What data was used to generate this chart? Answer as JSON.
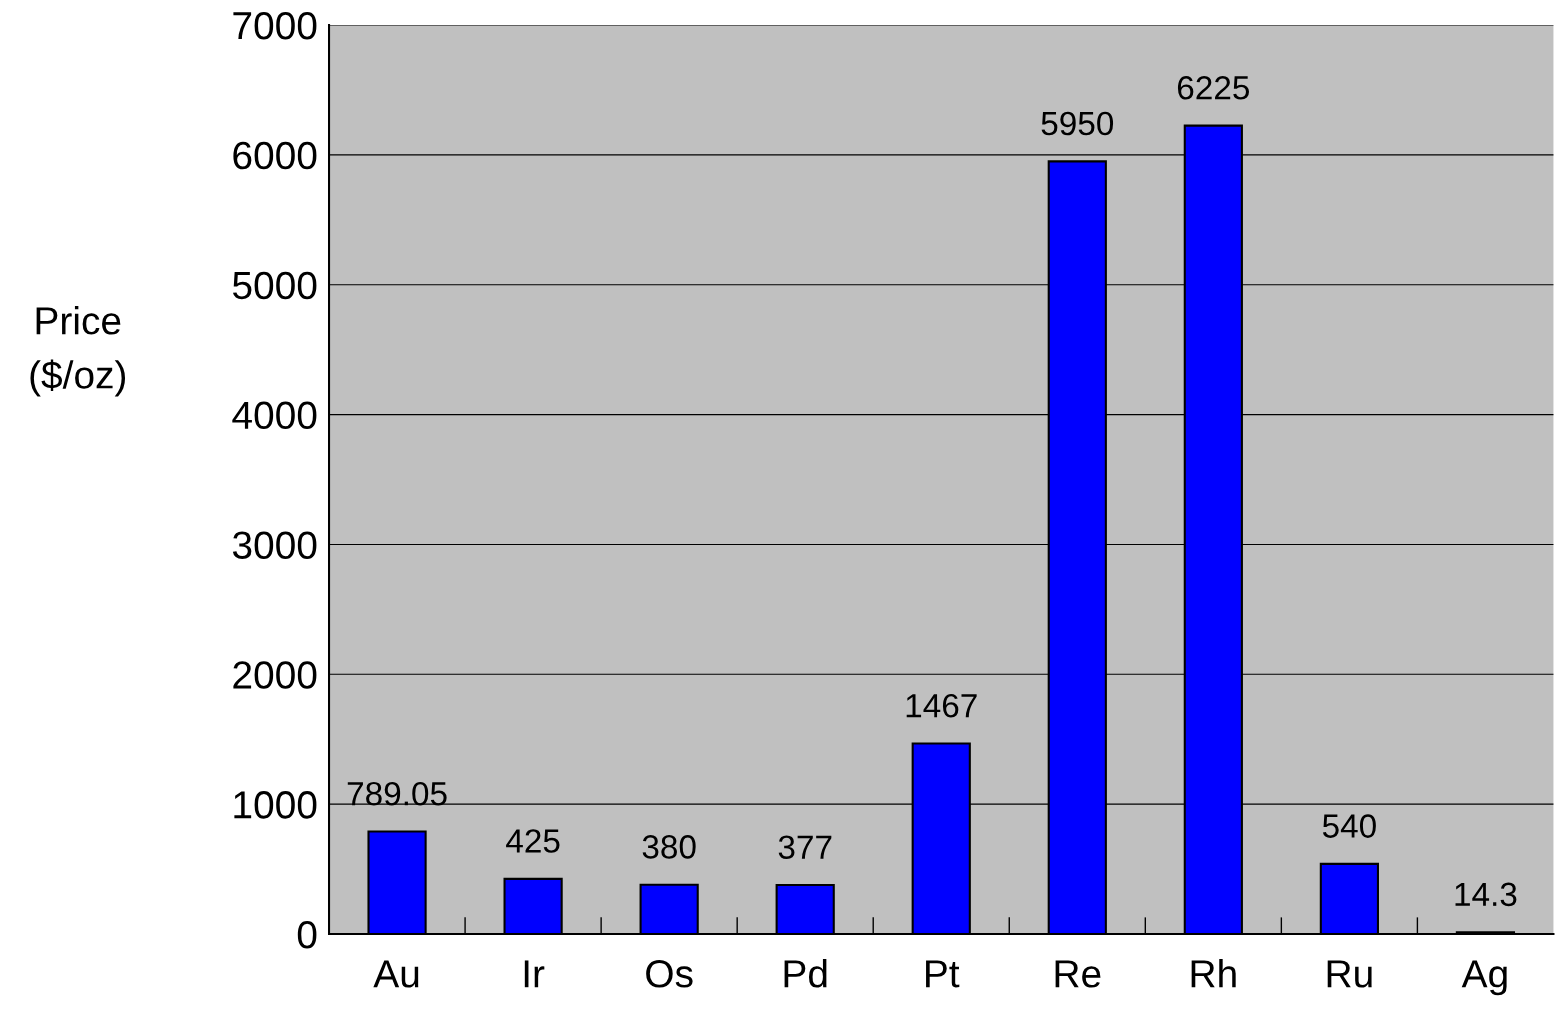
{
  "chart_data": {
    "type": "bar",
    "ylabel": "Price\n($/oz)",
    "categories": [
      "Au",
      "Ir",
      "Os",
      "Pd",
      "Pt",
      "Re",
      "Rh",
      "Ru",
      "Ag"
    ],
    "values": [
      789.05,
      425,
      380,
      377,
      1467,
      5950,
      6225,
      540,
      14.3
    ],
    "color": "#0000ff",
    "ylim": [
      0,
      7000
    ],
    "yticks": [
      0,
      1000,
      2000,
      3000,
      4000,
      5000,
      6000,
      7000
    ],
    "grid": "y",
    "data_labels": true,
    "legend": false
  }
}
